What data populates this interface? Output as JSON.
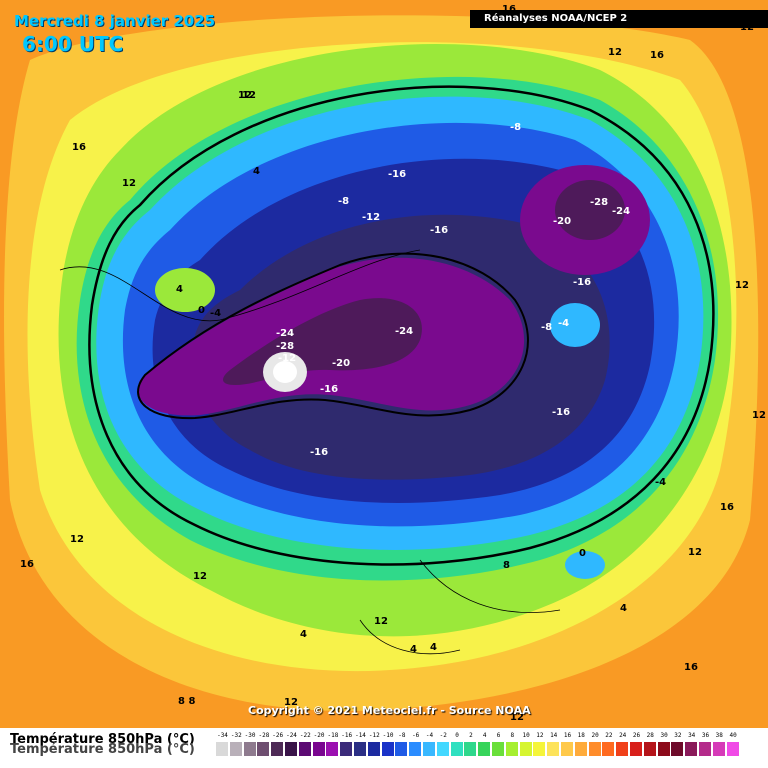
{
  "header": {
    "date": "Mercredi 8 janvier 2025",
    "time": "6:00 UTC",
    "source": "Réanalyses NOAA/NCEP 2"
  },
  "footer": {
    "copyright": "Copyright © 2021 Meteociel.fr - Source NOAA",
    "variable": "Température 850hPa (°C)"
  },
  "legend": {
    "values": [
      "-34",
      "-32",
      "-30",
      "-28",
      "-26",
      "-24",
      "-22",
      "-20",
      "-18",
      "-16",
      "-14",
      "-12",
      "-10",
      "-8",
      "-6",
      "-4",
      "-2",
      "0",
      "2",
      "4",
      "6",
      "8",
      "10",
      "12",
      "14",
      "16",
      "18",
      "20",
      "22",
      "24",
      "26",
      "28",
      "30",
      "32",
      "34",
      "36",
      "38",
      "40"
    ],
    "colors": [
      "#d9d9d9",
      "#b9b0b9",
      "#8e7a8e",
      "#6e4e70",
      "#4e2a56",
      "#3a1449",
      "#5c0a73",
      "#7a0590",
      "#9b0fb0",
      "#3b2a7a",
      "#2b2f85",
      "#1c2aa0",
      "#1a33c8",
      "#1f5be6",
      "#2a8cff",
      "#39b8ff",
      "#43d8ff",
      "#2fe0c0",
      "#2ed88c",
      "#36d45a",
      "#6adf3a",
      "#a6ef30",
      "#d6f530",
      "#f5f53a",
      "#fde35a",
      "#ffc94a",
      "#ffab3a",
      "#ff8c2a",
      "#ff6a1f",
      "#f0401a",
      "#d81f1a",
      "#b5141a",
      "#8c0a1a",
      "#6e0a2a",
      "#8a1a5a",
      "#b42a8a",
      "#d63ab8",
      "#f04ae6"
    ]
  },
  "map": {
    "colors": {
      "hot": "#f99a24",
      "warm": "#fbc63a",
      "mild": "#f7f24a",
      "cool": "#9be83a",
      "zero": "#30d98a",
      "cold": "#2fb8ff",
      "colder": "#1f5be6",
      "vcold": "#1c2aa0",
      "deep": "#2f2a6e",
      "purple": "#7a0a8e",
      "dpurple": "#4e1a5a",
      "extreme": "#e8e8e8"
    },
    "labels": [
      "16",
      "12",
      "12",
      "16",
      "12",
      "4",
      "-8",
      "-16",
      "-8",
      "-12",
      "-16",
      "-28",
      "-24",
      "-20",
      "-16",
      "-24",
      "-28",
      "-24",
      "-12",
      "-20",
      "-16",
      "-16",
      "-16",
      "-4",
      "-8",
      "12",
      "12",
      "12",
      "16",
      "16",
      "12",
      "4",
      "0",
      "-4",
      "-4",
      "0",
      "12",
      "16",
      "12",
      "8",
      "4",
      "4",
      "4",
      "16",
      "12",
      "12",
      "8 8",
      "12",
      "12",
      "4"
    ]
  }
}
